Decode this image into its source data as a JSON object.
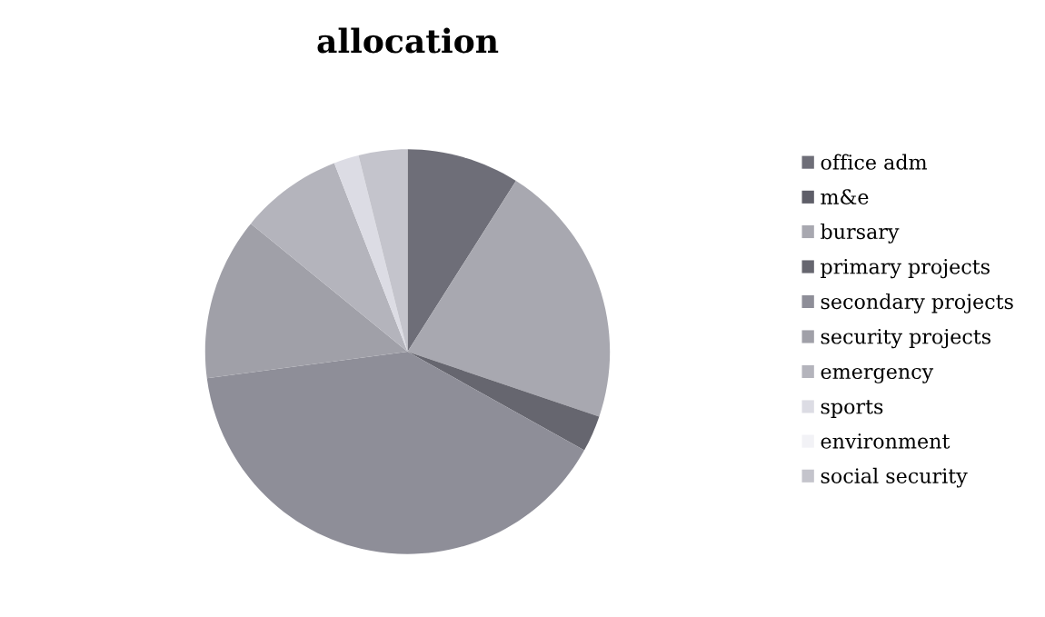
{
  "chart_data": {
    "type": "pie",
    "title": "allocation",
    "categories": [
      "office adm",
      "m&e",
      "bursary",
      "primary projects",
      "secondary projects",
      "security projects",
      "emergency",
      "sports",
      "environment",
      "social security"
    ],
    "values": [
      9.0,
      0,
      21.2,
      2.9,
      39.8,
      13.0,
      8.2,
      2.0,
      0,
      3.9
    ],
    "colors": [
      "#6e6e78",
      "#5e5e68",
      "#a8a8b0",
      "#66666f",
      "#8e8e98",
      "#a0a0a8",
      "#b4b4bc",
      "#dcdce4",
      "#f2f2f6",
      "#c4c4cc"
    ],
    "legend": "right"
  }
}
